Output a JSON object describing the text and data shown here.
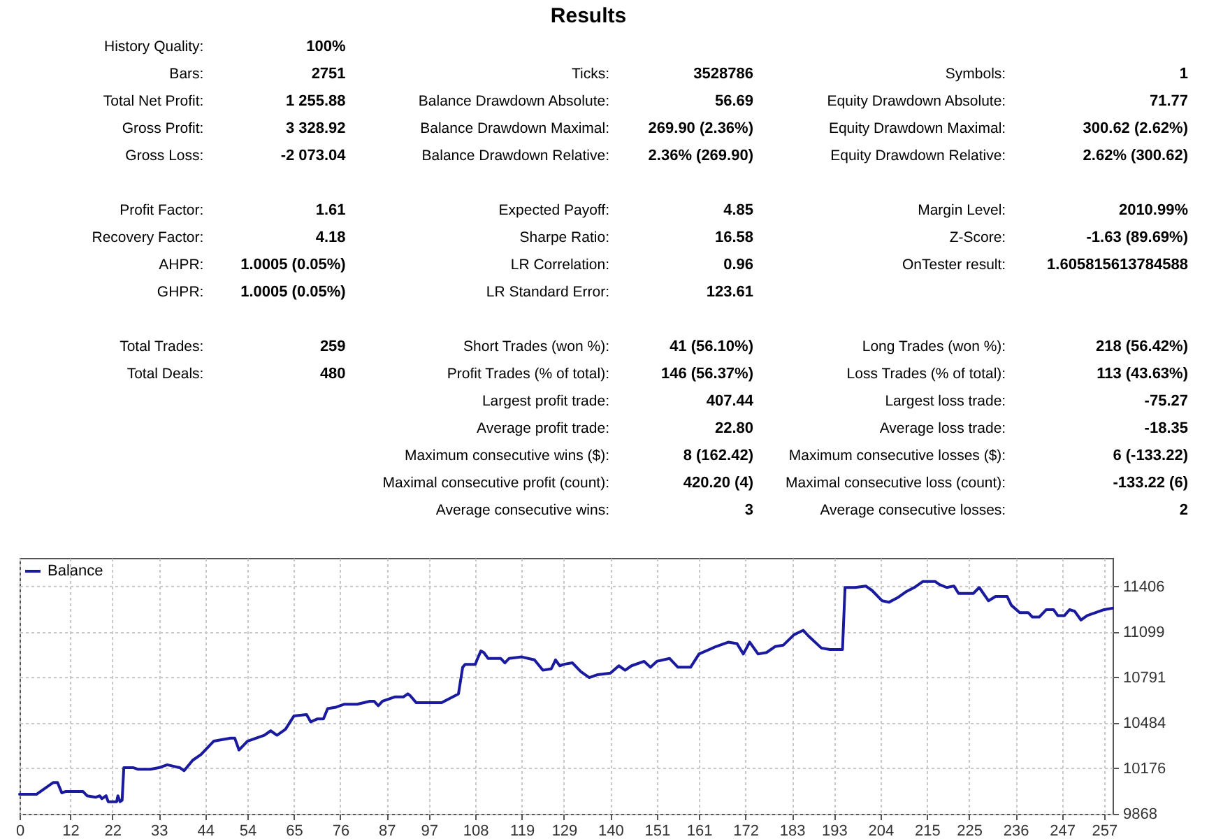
{
  "chart_data": [
    {
      "type": "other",
      "title": "Results",
      "annotations": [
        "History Quality:",
        "100%",
        "Bars:",
        "2751",
        "Ticks:",
        "3528786",
        "Symbols:",
        "1",
        "Total Net Profit:",
        "1 255.88",
        "Balance Drawdown Absolute:",
        "56.69",
        "Equity Drawdown Absolute:",
        "71.77",
        "Gross Profit:",
        "3 328.92",
        "Balance Drawdown Maximal:",
        "269.90 (2.36%)",
        "Equity Drawdown Maximal:",
        "300.62 (2.62%)",
        "Gross Loss:",
        "-2 073.04",
        "Balance Drawdown Relative:",
        "2.36% (269.90)",
        "Equity Drawdown Relative:",
        "2.62% (300.62)",
        "Profit Factor:",
        "1.61",
        "Expected Payoff:",
        "4.85",
        "Margin Level:",
        "2010.99%",
        "Recovery Factor:",
        "4.18",
        "Sharpe Ratio:",
        "16.58",
        "Z-Score:",
        "-1.63 (89.69%)",
        "AHPR:",
        "1.0005 (0.05%)",
        "LR Correlation:",
        "0.96",
        "OnTester result:",
        "1.605815613784588",
        "GHPR:",
        "1.0005 (0.05%)",
        "LR Standard Error:",
        "123.61",
        "Total Trades:",
        "259",
        "Short Trades (won %):",
        "41 (56.10%)",
        "Long Trades (won %):",
        "218 (56.42%)",
        "Total Deals:",
        "480",
        "Profit Trades (% of total):",
        "146 (56.37%)",
        "Loss Trades (% of total):",
        "113 (43.63%)",
        "Largest profit trade:",
        "407.44",
        "Largest loss trade:",
        "-75.27",
        "Average profit trade:",
        "22.80",
        "Average loss trade:",
        "-18.35",
        "Maximum consecutive wins ($):",
        "8 (162.42)",
        "Maximum consecutive losses ($):",
        "6 (-133.22)",
        "Maximal consecutive profit (count):",
        "420.20 (4)",
        "Maximal consecutive loss (count):",
        "-133.22 (6)",
        "Average consecutive wins:",
        "3",
        "Average consecutive losses:",
        "2"
      ]
    },
    {
      "type": "line",
      "series": [
        {
          "name": "Balance",
          "color": "#1a1a9e",
          "x": [
            0,
            4,
            6,
            8,
            9,
            10,
            11,
            15,
            16,
            18,
            19,
            19.5,
            20.5,
            21,
            23,
            23.3,
            23.8,
            24.3,
            24.7,
            27,
            28,
            31,
            33,
            35,
            38,
            39,
            41,
            43,
            46,
            50,
            51,
            52,
            54,
            56,
            58,
            59.5,
            61,
            63,
            65,
            68,
            69,
            70.5,
            72,
            73,
            75,
            77,
            80,
            83,
            84,
            85,
            86,
            89,
            91,
            92,
            92.5,
            94,
            100,
            102,
            104,
            105,
            105.6,
            108,
            108.4,
            109.3,
            110,
            111,
            114,
            115,
            116,
            119,
            122,
            124,
            126,
            127,
            128,
            129,
            131,
            133,
            135,
            137,
            140,
            142,
            143.5,
            145,
            148,
            149.5,
            151,
            154,
            156,
            159,
            161,
            165,
            168,
            170,
            171.5,
            173,
            175,
            177,
            179,
            181,
            183.5,
            185.7,
            187,
            190,
            192,
            195,
            195.6,
            198,
            200.5,
            202,
            204.4,
            206,
            208,
            210,
            212,
            214,
            217,
            218,
            219.7,
            221.4,
            222.5,
            226,
            227.4,
            229.6,
            231.3,
            234,
            235,
            237,
            239,
            240,
            241.6,
            243.3,
            245,
            246,
            247.6,
            248.8,
            250,
            251.5,
            253,
            255,
            257,
            259
          ],
          "values": [
            10000,
            10000,
            10040,
            10080,
            10080,
            10010,
            10020,
            10020,
            9990,
            9980,
            9990,
            9970,
            9990,
            9950,
            9950,
            9990,
            9950,
            9960,
            10180,
            10180,
            10170,
            10170,
            10180,
            10200,
            10180,
            10160,
            10230,
            10270,
            10360,
            10380,
            10380,
            10300,
            10360,
            10380,
            10400,
            10430,
            10400,
            10440,
            10530,
            10540,
            10490,
            10510,
            10510,
            10580,
            10590,
            10610,
            10610,
            10630,
            10630,
            10600,
            10630,
            10660,
            10660,
            10680,
            10670,
            10620,
            10620,
            10650,
            10680,
            10860,
            10880,
            10880,
            10910,
            10970,
            10960,
            10920,
            10920,
            10890,
            10920,
            10930,
            10910,
            10840,
            10850,
            10910,
            10870,
            10880,
            10890,
            10830,
            10790,
            10810,
            10820,
            10870,
            10840,
            10870,
            10900,
            10860,
            10900,
            10920,
            10860,
            10860,
            10950,
            11000,
            11030,
            11020,
            10950,
            11030,
            10950,
            10960,
            11000,
            11010,
            11080,
            11110,
            11070,
            10990,
            10980,
            10980,
            11400,
            11400,
            11410,
            11380,
            11310,
            11300,
            11330,
            11370,
            11400,
            11440,
            11440,
            11420,
            11400,
            11410,
            11360,
            11360,
            11400,
            11310,
            11340,
            11340,
            11280,
            11230,
            11230,
            11200,
            11200,
            11250,
            11250,
            11210,
            11210,
            11250,
            11240,
            11180,
            11210,
            11230,
            11250,
            11260
          ]
        }
      ],
      "xlim": [
        0,
        259
      ],
      "ylim": [
        9868,
        11600
      ],
      "xticks": [
        0,
        12,
        22,
        33,
        44,
        54,
        65,
        76,
        87,
        97,
        108,
        119,
        129,
        140,
        151,
        161,
        172,
        183,
        193,
        204,
        215,
        225,
        236,
        247,
        257
      ],
      "yticks": [
        9868,
        10176,
        10484,
        10791,
        11099,
        11406
      ],
      "grid": true,
      "legend": "top left"
    }
  ]
}
